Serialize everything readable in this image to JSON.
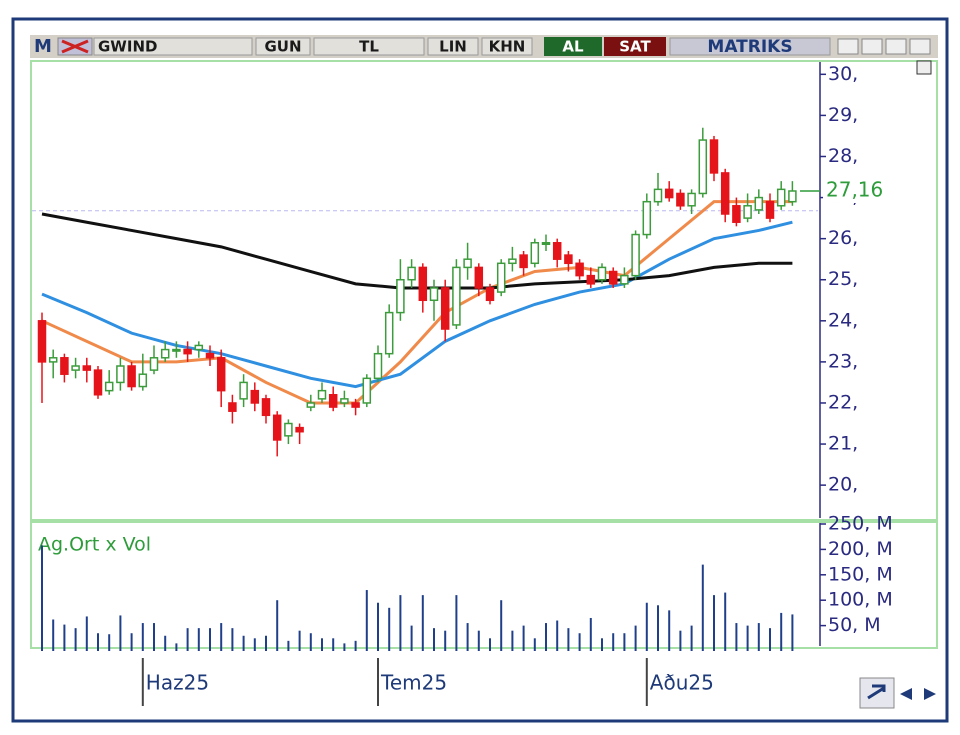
{
  "toolbar": {
    "logo": "M",
    "symbol": "GWIND",
    "period": "GUN",
    "currency": "TL",
    "scale": "LIN",
    "mode": "KHN",
    "buy": "AL",
    "sell": "SAT",
    "brand": "MATRIKS"
  },
  "chart_data": {
    "type": "candlestick",
    "categories": [
      null,
      null,
      null,
      null,
      null,
      null,
      null,
      null,
      null,
      "Haz25",
      null,
      null,
      null,
      null,
      null,
      null,
      null,
      null,
      null,
      null,
      null,
      null,
      null,
      null,
      null,
      null,
      null,
      null,
      null,
      null,
      "Tem25",
      null,
      null,
      null,
      null,
      null,
      null,
      null,
      null,
      null,
      null,
      null,
      null,
      null,
      null,
      null,
      null,
      null,
      null,
      null,
      null,
      null,
      null,
      null,
      "Aðu25",
      null,
      null,
      null,
      null,
      null,
      null,
      null,
      null,
      null,
      null,
      null,
      null,
      null
    ],
    "open": [
      24.0,
      23.0,
      23.1,
      22.8,
      22.9,
      22.8,
      22.3,
      22.5,
      22.9,
      22.4,
      22.8,
      23.1,
      23.3,
      23.3,
      23.3,
      23.2,
      23.1,
      22.0,
      22.1,
      22.3,
      22.1,
      21.7,
      21.2,
      21.4,
      21.9,
      22.1,
      22.2,
      22.0,
      22.0,
      22.0,
      22.6,
      23.2,
      24.2,
      25.0,
      25.3,
      24.5,
      24.8,
      23.9,
      25.3,
      25.3,
      24.8,
      24.7,
      25.4,
      25.6,
      25.4,
      25.9,
      25.9,
      25.6,
      25.4,
      25.1,
      25.0,
      25.2,
      24.9,
      25.1,
      26.1,
      26.9,
      27.2,
      27.1,
      26.8,
      27.1,
      28.4,
      27.6,
      26.8,
      26.5,
      26.7,
      26.9,
      26.8,
      26.9
    ],
    "high": [
      24.2,
      23.3,
      23.2,
      23.1,
      23.1,
      22.9,
      22.8,
      23.1,
      23.0,
      23.2,
      23.4,
      23.5,
      23.5,
      23.5,
      23.5,
      23.4,
      23.3,
      22.2,
      22.7,
      22.5,
      22.2,
      21.8,
      21.6,
      21.5,
      22.2,
      22.5,
      22.4,
      22.3,
      22.1,
      22.7,
      23.4,
      24.4,
      25.5,
      25.5,
      25.4,
      25.0,
      25.0,
      25.5,
      25.9,
      25.4,
      24.9,
      25.5,
      25.8,
      25.7,
      26.0,
      26.1,
      26.0,
      25.7,
      25.5,
      25.3,
      25.4,
      25.3,
      25.3,
      26.2,
      27.1,
      27.6,
      27.4,
      27.2,
      27.2,
      28.7,
      28.5,
      27.7,
      27.0,
      27.1,
      27.2,
      27.1,
      27.4,
      27.4
    ],
    "low": [
      22.0,
      22.6,
      22.5,
      22.6,
      22.5,
      22.1,
      22.2,
      22.3,
      22.3,
      22.3,
      22.7,
      23.0,
      23.1,
      23.0,
      23.1,
      22.9,
      21.9,
      21.5,
      21.9,
      21.8,
      21.5,
      20.7,
      21.0,
      21.0,
      21.8,
      22.0,
      21.8,
      21.9,
      21.7,
      21.9,
      22.5,
      23.1,
      24.0,
      24.8,
      24.2,
      24.0,
      23.5,
      23.8,
      25.0,
      24.6,
      24.4,
      24.6,
      25.2,
      25.1,
      25.3,
      25.7,
      25.3,
      25.2,
      25.0,
      24.8,
      24.9,
      24.8,
      24.8,
      25.0,
      26.0,
      26.8,
      26.9,
      26.7,
      26.6,
      27.0,
      27.4,
      26.4,
      26.3,
      26.4,
      26.6,
      26.4,
      26.7,
      26.8
    ],
    "close": [
      23.0,
      23.1,
      22.7,
      22.9,
      22.8,
      22.2,
      22.5,
      22.9,
      22.4,
      22.7,
      23.1,
      23.3,
      23.3,
      23.2,
      23.4,
      23.1,
      22.3,
      21.8,
      22.5,
      22.0,
      21.7,
      21.1,
      21.5,
      21.3,
      22.0,
      22.3,
      21.9,
      22.1,
      21.9,
      22.6,
      23.2,
      24.2,
      25.0,
      25.3,
      24.5,
      24.8,
      23.8,
      25.3,
      25.5,
      24.8,
      24.5,
      25.4,
      25.5,
      25.3,
      25.9,
      25.9,
      25.5,
      25.4,
      25.1,
      24.9,
      25.3,
      24.9,
      25.1,
      26.1,
      26.9,
      27.2,
      27.0,
      26.8,
      27.1,
      28.4,
      27.6,
      26.6,
      26.4,
      26.8,
      27.0,
      26.5,
      27.2,
      27.16
    ],
    "up_color": "#3c9c3c",
    "down_color": "#e5141b",
    "lines": [
      {
        "color": "#f08a4b",
        "x": [
          0,
          4,
          8,
          12,
          16,
          20,
          24,
          28,
          32,
          36,
          40,
          44,
          48,
          52,
          56,
          60,
          64,
          67
        ],
        "values": [
          24.0,
          23.5,
          23.0,
          23.0,
          23.1,
          22.5,
          22.0,
          22.0,
          23.0,
          24.2,
          24.8,
          25.2,
          25.3,
          25.1,
          26.0,
          26.9,
          26.9,
          26.9
        ]
      },
      {
        "color": "#2f8fe0",
        "x": [
          0,
          4,
          8,
          12,
          16,
          20,
          24,
          28,
          32,
          36,
          40,
          44,
          48,
          52,
          56,
          60,
          64,
          67
        ],
        "values": [
          24.65,
          24.2,
          23.7,
          23.4,
          23.2,
          22.9,
          22.6,
          22.4,
          22.7,
          23.5,
          24.0,
          24.4,
          24.7,
          24.9,
          25.5,
          26.0,
          26.2,
          26.4
        ]
      },
      {
        "color": "#111111",
        "x": [
          0,
          4,
          8,
          12,
          16,
          20,
          24,
          28,
          32,
          36,
          40,
          44,
          48,
          52,
          56,
          60,
          64,
          67
        ],
        "values": [
          26.6,
          26.4,
          26.2,
          26.0,
          25.8,
          25.5,
          25.2,
          24.9,
          24.8,
          24.8,
          24.8,
          24.9,
          24.95,
          25.0,
          25.1,
          25.3,
          25.4,
          25.4
        ]
      }
    ],
    "ylim": [
      19.2,
      30.3
    ],
    "yticks": [
      {
        "value": 20,
        "label": "20,"
      },
      {
        "value": 21,
        "label": "21,"
      },
      {
        "value": 22,
        "label": "22,"
      },
      {
        "value": 23,
        "label": "23,"
      },
      {
        "value": 24,
        "label": "24,"
      },
      {
        "value": 25,
        "label": "25,"
      },
      {
        "value": 26,
        "label": "26,"
      },
      {
        "value": 27,
        "label": "27,"
      },
      {
        "value": 28,
        "label": "28,"
      },
      {
        "value": 29,
        "label": "29,"
      },
      {
        "value": 30,
        "label": "30,"
      }
    ],
    "last_price": {
      "value": 27.16,
      "label": "27,16"
    },
    "reference_line": 26.68,
    "volume": {
      "title": "Ag.Ort x Vol",
      "color": "#1f3f8a",
      "values": [
        208,
        62,
        52,
        45,
        68,
        35,
        33,
        70,
        35,
        55,
        55,
        30,
        15,
        45,
        45,
        45,
        55,
        45,
        30,
        25,
        30,
        100,
        20,
        40,
        35,
        25,
        25,
        15,
        20,
        120,
        95,
        85,
        110,
        50,
        110,
        45,
        40,
        110,
        55,
        40,
        25,
        100,
        40,
        50,
        25,
        55,
        60,
        45,
        35,
        65,
        25,
        35,
        35,
        50,
        95,
        90,
        80,
        40,
        50,
        170,
        110,
        115,
        55,
        50,
        55,
        45,
        75,
        72
      ],
      "ylim": [
        0,
        250
      ],
      "yticks": [
        {
          "value": 50,
          "label": "50, M"
        },
        {
          "value": 100,
          "label": "100, M"
        },
        {
          "value": 150,
          "label": "150, M"
        },
        {
          "value": 200,
          "label": "200, M"
        },
        {
          "value": 250,
          "label": "250, M"
        }
      ]
    }
  }
}
